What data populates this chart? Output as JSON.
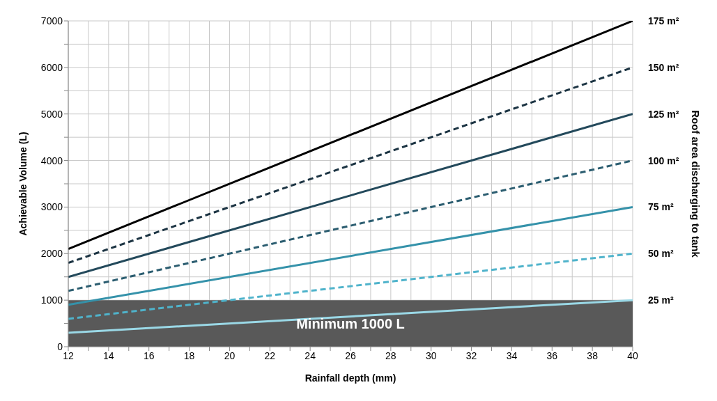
{
  "chart_data": {
    "type": "line",
    "xlabel": "Rainfall depth (mm)",
    "ylabel": "Achievable Volume (L)",
    "y2label": "Roof area discharging to tank",
    "x": [
      12,
      40
    ],
    "series": [
      {
        "name": "175 m²",
        "color": "#000000",
        "values": [
          2100,
          7000
        ],
        "line_style": "solid"
      },
      {
        "name": "150 m²",
        "color": "#1c3443",
        "values": [
          1800,
          6000
        ],
        "line_style": "dashed"
      },
      {
        "name": "125 m²",
        "color": "#23495b",
        "values": [
          1500,
          5000
        ],
        "line_style": "solid"
      },
      {
        "name": "100 m²",
        "color": "#2b5d70",
        "values": [
          1200,
          4000
        ],
        "line_style": "dashed"
      },
      {
        "name": "75 m²",
        "color": "#3592aa",
        "values": [
          900,
          3000
        ],
        "line_style": "solid"
      },
      {
        "name": "50 m²",
        "color": "#4fb3cb",
        "values": [
          600,
          2000
        ],
        "line_style": "dashed"
      },
      {
        "name": "25 m²",
        "color": "#9ad8e6",
        "values": [
          300,
          1000
        ],
        "line_style": "solid"
      }
    ],
    "xlim": [
      12,
      40
    ],
    "xticks": [
      12,
      {
        "value": 13,
        "label": null
      },
      14,
      {
        "value": 15,
        "label": null
      },
      16,
      {
        "value": 17,
        "label": null
      },
      18,
      {
        "value": 19,
        "label": null
      },
      20,
      {
        "value": 21,
        "label": null
      },
      22,
      {
        "value": 23,
        "label": null
      },
      24,
      {
        "value": 25,
        "label": null
      },
      26,
      {
        "value": 27,
        "label": null
      },
      28,
      {
        "value": 29,
        "label": null
      },
      30,
      {
        "value": 31,
        "label": null
      },
      32,
      {
        "value": 33,
        "label": null
      },
      34,
      {
        "value": 35,
        "label": null
      },
      36,
      {
        "value": 37,
        "label": null
      },
      38,
      {
        "value": 39,
        "label": null
      },
      40
    ],
    "ylim": [
      0,
      7000
    ],
    "yticks": [
      0,
      {
        "value": 500,
        "label": null
      },
      1000,
      {
        "value": 1500,
        "label": null
      },
      2000,
      {
        "value": 2500,
        "label": null
      },
      3000,
      {
        "value": 3500,
        "label": null
      },
      4000,
      {
        "value": 4500,
        "label": null
      },
      5000,
      {
        "value": 5500,
        "label": null
      },
      6000,
      {
        "value": 6500,
        "label": null
      },
      7000
    ],
    "bands": [
      {
        "axis": "y",
        "from": 0,
        "to": 1000,
        "label": "Minimum 1000 L",
        "color": "#595959"
      }
    ],
    "grid": true,
    "marker": "none"
  }
}
